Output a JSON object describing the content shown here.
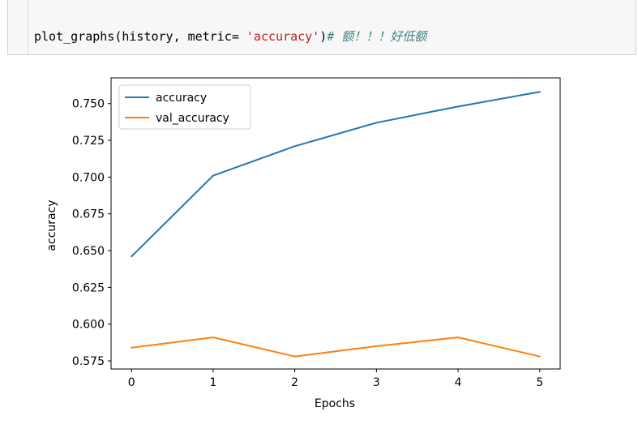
{
  "code": {
    "call": "plot_graphs(history, metric= ",
    "string": "'accuracy'",
    "close": ")",
    "comment": "# 额！！！好低额"
  },
  "chart_data": {
    "type": "line",
    "x": [
      0,
      1,
      2,
      3,
      4,
      5
    ],
    "series": [
      {
        "name": "accuracy",
        "color": "#1f77b4",
        "values": [
          0.646,
          0.701,
          0.721,
          0.737,
          0.748,
          0.758
        ]
      },
      {
        "name": "val_accuracy",
        "color": "#ff7f0e",
        "values": [
          0.584,
          0.591,
          0.578,
          0.585,
          0.591,
          0.578
        ]
      }
    ],
    "xlabel": "Epochs",
    "ylabel": "accuracy",
    "xlim": [
      -0.25,
      5.25
    ],
    "ylim": [
      0.5695,
      0.7675
    ],
    "xticks": [
      "0",
      "1",
      "2",
      "3",
      "4",
      "5"
    ],
    "yticks": [
      "0.575",
      "0.600",
      "0.625",
      "0.650",
      "0.675",
      "0.700",
      "0.725",
      "0.750"
    ],
    "legend": "top-left",
    "grid": false
  }
}
